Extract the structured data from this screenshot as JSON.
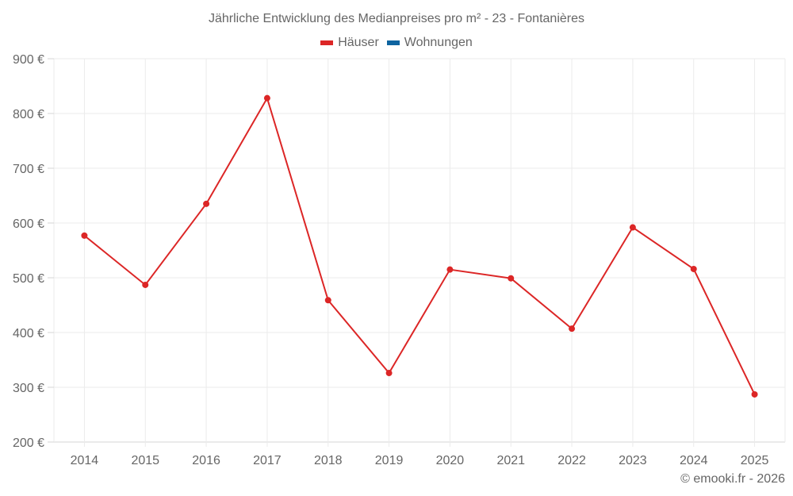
{
  "chart_data": {
    "type": "line",
    "title": "Jährliche Entwicklung des Medianpreises pro m² - 23 - Fontanières",
    "xlabel": "",
    "ylabel": "",
    "categories": [
      "2014",
      "2015",
      "2016",
      "2017",
      "2018",
      "2019",
      "2020",
      "2021",
      "2022",
      "2023",
      "2024",
      "2025"
    ],
    "series": [
      {
        "name": "Häuser",
        "color": "#dc2626",
        "values": [
          577,
          487,
          635,
          828,
          459,
          326,
          515,
          499,
          407,
          592,
          516,
          287
        ]
      },
      {
        "name": "Wohnungen",
        "color": "#0e64a0",
        "values": []
      }
    ],
    "ylim": [
      200,
      900
    ],
    "yticks": [
      200,
      300,
      400,
      500,
      600,
      700,
      800,
      900
    ],
    "ytick_labels": [
      "200 €",
      "300 €",
      "400 €",
      "500 €",
      "600 €",
      "700 €",
      "800 €",
      "900 €"
    ],
    "grid": true,
    "legend_position": "top"
  },
  "legend": [
    {
      "label": "Häuser",
      "color": "#dc2626"
    },
    {
      "label": "Wohnungen",
      "color": "#0e64a0"
    }
  ],
  "credit": "© emooki.fr - 2026"
}
